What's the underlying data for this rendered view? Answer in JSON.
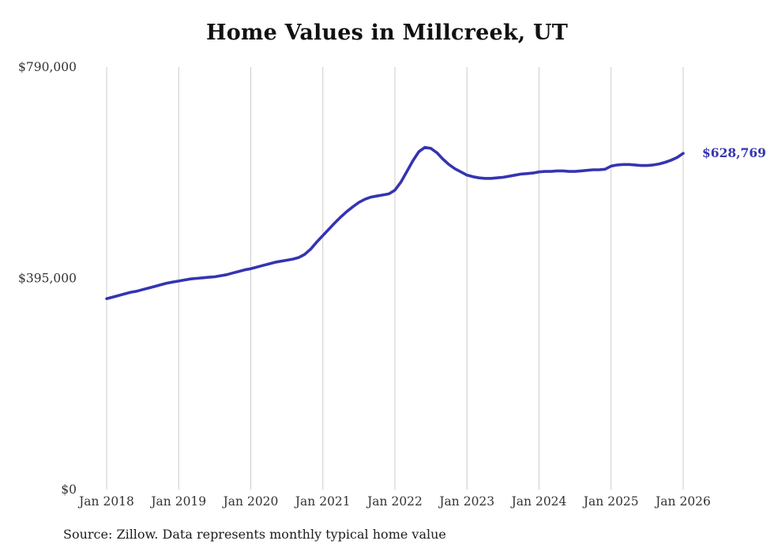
{
  "chart_data": {
    "type": "line",
    "title": "Home Values in Millcreek, UT",
    "source": "Source: Zillow. Data represents monthly typical home value",
    "x_tick_labels": [
      "Jan 2018",
      "Jan 2019",
      "Jan 2020",
      "Jan 2021",
      "Jan 2022",
      "Jan 2023",
      "Jan 2024",
      "Jan 2025",
      "Jan 2026"
    ],
    "y_ticks": [
      {
        "label": "$790,000",
        "value": 790000
      },
      {
        "label": "$395,000",
        "value": 395000
      },
      {
        "label": "$0",
        "value": 0
      }
    ],
    "ylim": [
      0,
      790000
    ],
    "grid": "vertical-only",
    "legend": "none",
    "end_label": "$628,769",
    "line_color": "#3434b2",
    "gridline_color": "#cccccc",
    "axis_text_color": "#333333",
    "series": [
      {
        "name": "Typical home value",
        "x_start": "2018-01",
        "x_interval": "month",
        "values": [
          357000,
          360000,
          363000,
          366000,
          369000,
          371000,
          374000,
          377000,
          380000,
          383000,
          386000,
          388000,
          390000,
          392000,
          394000,
          395000,
          396000,
          397000,
          398000,
          400000,
          402000,
          405000,
          408000,
          411000,
          413000,
          416000,
          419000,
          422000,
          425000,
          427000,
          429000,
          431000,
          434000,
          440000,
          450000,
          463000,
          475000,
          487000,
          499000,
          510000,
          520000,
          529000,
          537000,
          543000,
          547000,
          549000,
          551000,
          553000,
          560000,
          575000,
          595000,
          615000,
          632000,
          640000,
          638000,
          630000,
          618000,
          608000,
          600000,
          594000,
          588000,
          585000,
          583000,
          582000,
          582000,
          583000,
          584000,
          586000,
          588000,
          590000,
          591000,
          592000,
          594000,
          595000,
          595000,
          596000,
          596000,
          595000,
          595000,
          596000,
          597000,
          598000,
          598000,
          599000,
          605000,
          607000,
          608000,
          608000,
          607000,
          606000,
          606000,
          607000,
          609000,
          612000,
          616000,
          621000,
          628769
        ]
      }
    ]
  }
}
